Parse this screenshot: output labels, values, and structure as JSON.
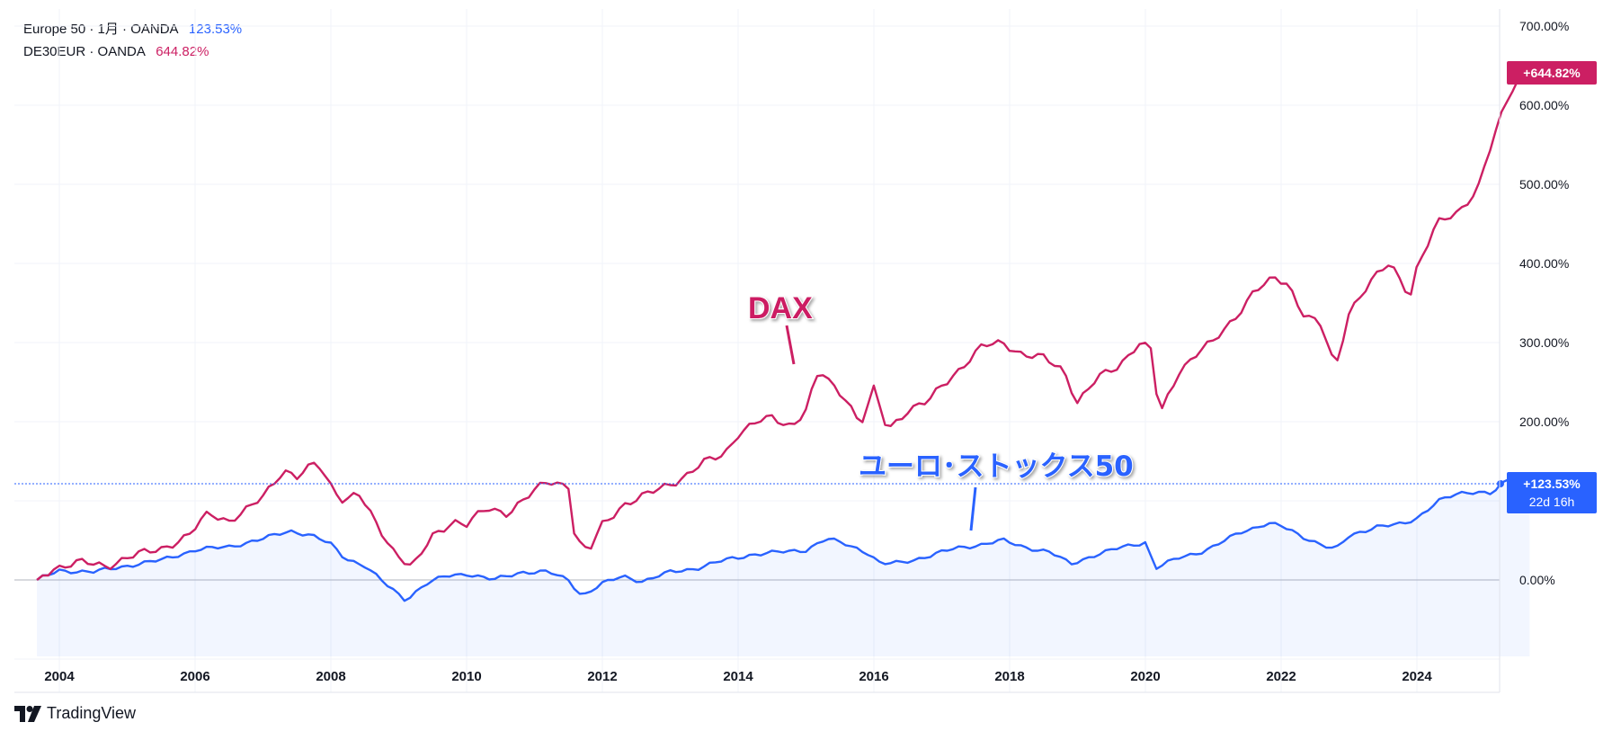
{
  "legend": {
    "series1_name": "Europe 50 · 1月 · OANDA",
    "series1_value": "123.53%",
    "series2_name": "DE30EUR · OANDA",
    "series2_value": "644.82%"
  },
  "badges": {
    "dax_last": "+644.82%",
    "euro_last": "+123.53%",
    "countdown": "22d 16h"
  },
  "annotations": {
    "dax": "DAX",
    "euro": "ユーロ･ストックス50"
  },
  "brand": {
    "name": "TradingView"
  },
  "colors": {
    "dax": "#cc1f63",
    "euro": "#2962ff",
    "grid": "#f0f3fa",
    "axis_text": "#131722"
  },
  "chart_data": {
    "type": "line",
    "title": "",
    "xlabel": "",
    "ylabel": "",
    "x_start": 2003.67,
    "x_step": 0.0833,
    "xlim": [
      2003.67,
      2025.67
    ],
    "ylim": [
      -90,
      700
    ],
    "y_ticks": [
      700,
      600,
      500,
      400,
      300,
      200,
      0
    ],
    "y_tick_labels": [
      "700.00%",
      "600.00%",
      "500.00%",
      "400.00%",
      "300.00%",
      "200.00%",
      "0.00%"
    ],
    "x_ticks": [
      2004,
      2006,
      2008,
      2010,
      2012,
      2014,
      2016,
      2018,
      2020,
      2022,
      2024
    ],
    "x_tick_labels": [
      "2004",
      "2006",
      "2008",
      "2010",
      "2012",
      "2014",
      "2016",
      "2018",
      "2020",
      "2022",
      "2024"
    ],
    "series": [
      {
        "name": "DE30EUR · OANDA",
        "last": 644.82,
        "anchors": [
          [
            2003.67,
            0
          ],
          [
            2003.9,
            15
          ],
          [
            2004.3,
            22
          ],
          [
            2004.7,
            18
          ],
          [
            2005.0,
            28
          ],
          [
            2005.5,
            40
          ],
          [
            2005.9,
            55
          ],
          [
            2006.2,
            85
          ],
          [
            2006.5,
            75
          ],
          [
            2006.8,
            90
          ],
          [
            2007.0,
            105
          ],
          [
            2007.3,
            140
          ],
          [
            2007.5,
            130
          ],
          [
            2007.8,
            148
          ],
          [
            2008.0,
            120
          ],
          [
            2008.2,
            100
          ],
          [
            2008.4,
            110
          ],
          [
            2008.6,
            80
          ],
          [
            2008.9,
            40
          ],
          [
            2009.2,
            15
          ],
          [
            2009.5,
            55
          ],
          [
            2009.8,
            75
          ],
          [
            2010.0,
            70
          ],
          [
            2010.3,
            90
          ],
          [
            2010.6,
            85
          ],
          [
            2010.9,
            105
          ],
          [
            2011.2,
            125
          ],
          [
            2011.5,
            120
          ],
          [
            2011.6,
            50
          ],
          [
            2011.8,
            35
          ],
          [
            2012.0,
            70
          ],
          [
            2012.3,
            95
          ],
          [
            2012.6,
            105
          ],
          [
            2012.9,
            118
          ],
          [
            2013.2,
            130
          ],
          [
            2013.5,
            148
          ],
          [
            2013.8,
            160
          ],
          [
            2014.0,
            185
          ],
          [
            2014.3,
            200
          ],
          [
            2014.5,
            205
          ],
          [
            2014.8,
            195
          ],
          [
            2015.0,
            215
          ],
          [
            2015.2,
            265
          ],
          [
            2015.4,
            245
          ],
          [
            2015.6,
            230
          ],
          [
            2015.8,
            195
          ],
          [
            2016.0,
            240
          ],
          [
            2016.2,
            190
          ],
          [
            2016.5,
            215
          ],
          [
            2016.8,
            225
          ],
          [
            2017.0,
            245
          ],
          [
            2017.3,
            270
          ],
          [
            2017.6,
            295
          ],
          [
            2017.9,
            300
          ],
          [
            2018.2,
            285
          ],
          [
            2018.5,
            280
          ],
          [
            2018.8,
            265
          ],
          [
            2019.0,
            225
          ],
          [
            2019.3,
            255
          ],
          [
            2019.6,
            270
          ],
          [
            2019.9,
            300
          ],
          [
            2020.1,
            290
          ],
          [
            2020.2,
            205
          ],
          [
            2020.5,
            265
          ],
          [
            2020.8,
            290
          ],
          [
            2021.0,
            300
          ],
          [
            2021.3,
            330
          ],
          [
            2021.6,
            365
          ],
          [
            2021.9,
            380
          ],
          [
            2022.1,
            375
          ],
          [
            2022.3,
            340
          ],
          [
            2022.6,
            320
          ],
          [
            2022.8,
            265
          ],
          [
            2023.0,
            340
          ],
          [
            2023.3,
            375
          ],
          [
            2023.6,
            400
          ],
          [
            2023.9,
            360
          ],
          [
            2024.0,
            395
          ],
          [
            2024.3,
            450
          ],
          [
            2024.6,
            465
          ],
          [
            2024.9,
            495
          ],
          [
            2025.1,
            550
          ],
          [
            2025.3,
            600
          ],
          [
            2025.45,
            630
          ],
          [
            2025.67,
            644.82
          ]
        ]
      },
      {
        "name": "Europe 50 · 1月 · OANDA",
        "last": 123.53,
        "anchors": [
          [
            2003.67,
            0
          ],
          [
            2004.0,
            12
          ],
          [
            2004.5,
            10
          ],
          [
            2005.0,
            18
          ],
          [
            2005.5,
            25
          ],
          [
            2006.0,
            38
          ],
          [
            2006.5,
            42
          ],
          [
            2007.0,
            52
          ],
          [
            2007.4,
            62
          ],
          [
            2007.7,
            57
          ],
          [
            2008.0,
            45
          ],
          [
            2008.2,
            28
          ],
          [
            2008.5,
            18
          ],
          [
            2008.8,
            -5
          ],
          [
            2009.1,
            -25
          ],
          [
            2009.4,
            -5
          ],
          [
            2009.7,
            5
          ],
          [
            2010.0,
            8
          ],
          [
            2010.4,
            0
          ],
          [
            2010.8,
            10
          ],
          [
            2011.2,
            10
          ],
          [
            2011.5,
            0
          ],
          [
            2011.7,
            -20
          ],
          [
            2012.0,
            -5
          ],
          [
            2012.3,
            5
          ],
          [
            2012.6,
            -2
          ],
          [
            2013.0,
            10
          ],
          [
            2013.4,
            15
          ],
          [
            2013.8,
            25
          ],
          [
            2014.2,
            32
          ],
          [
            2014.6,
            35
          ],
          [
            2015.0,
            38
          ],
          [
            2015.3,
            52
          ],
          [
            2015.6,
            45
          ],
          [
            2015.9,
            35
          ],
          [
            2016.1,
            20
          ],
          [
            2016.4,
            22
          ],
          [
            2016.8,
            30
          ],
          [
            2017.2,
            40
          ],
          [
            2017.6,
            45
          ],
          [
            2017.9,
            50
          ],
          [
            2018.2,
            42
          ],
          [
            2018.6,
            35
          ],
          [
            2018.9,
            20
          ],
          [
            2019.2,
            30
          ],
          [
            2019.6,
            40
          ],
          [
            2020.0,
            48
          ],
          [
            2020.15,
            15
          ],
          [
            2020.5,
            28
          ],
          [
            2020.8,
            35
          ],
          [
            2021.0,
            42
          ],
          [
            2021.4,
            60
          ],
          [
            2021.8,
            72
          ],
          [
            2022.0,
            68
          ],
          [
            2022.3,
            55
          ],
          [
            2022.6,
            45
          ],
          [
            2022.8,
            38
          ],
          [
            2023.0,
            55
          ],
          [
            2023.4,
            68
          ],
          [
            2023.8,
            70
          ],
          [
            2024.0,
            78
          ],
          [
            2024.3,
            100
          ],
          [
            2024.6,
            108
          ],
          [
            2024.9,
            112
          ],
          [
            2025.1,
            110
          ],
          [
            2025.3,
            125
          ],
          [
            2025.5,
            118
          ],
          [
            2025.67,
            123.53
          ]
        ]
      }
    ]
  }
}
